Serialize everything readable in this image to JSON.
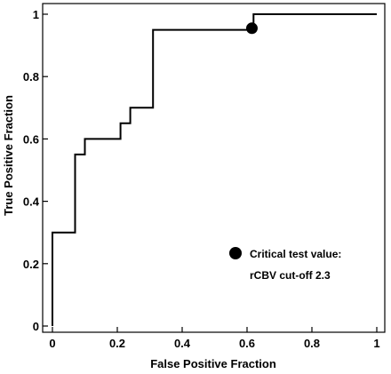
{
  "chart_data": {
    "type": "line",
    "xlabel": "False Positive Fraction",
    "ylabel": "True Positive Fraction",
    "xlim": [
      0,
      1
    ],
    "ylim": [
      0,
      1
    ],
    "xticks": [
      "0",
      "0.2",
      "0.4",
      "0.6",
      "0.8",
      "1"
    ],
    "yticks": [
      "0",
      "0.2",
      "0.4",
      "0.6",
      "0.8",
      "1"
    ],
    "grid": false,
    "series": [
      {
        "points": [
          [
            0,
            0
          ],
          [
            0,
            0.3
          ],
          [
            0.07,
            0.3
          ],
          [
            0.07,
            0.55
          ],
          [
            0.1,
            0.55
          ],
          [
            0.1,
            0.6
          ],
          [
            0.21,
            0.6
          ],
          [
            0.21,
            0.65
          ],
          [
            0.24,
            0.65
          ],
          [
            0.24,
            0.7
          ],
          [
            0.31,
            0.7
          ],
          [
            0.31,
            0.95
          ],
          [
            0.62,
            0.95
          ],
          [
            0.62,
            1
          ],
          [
            1,
            1
          ]
        ]
      }
    ],
    "marker": {
      "x": 0.615,
      "y": 0.955
    },
    "annotation": {
      "line1": "Critical test value:",
      "line2": "rCBV cut-off 2.3"
    }
  }
}
